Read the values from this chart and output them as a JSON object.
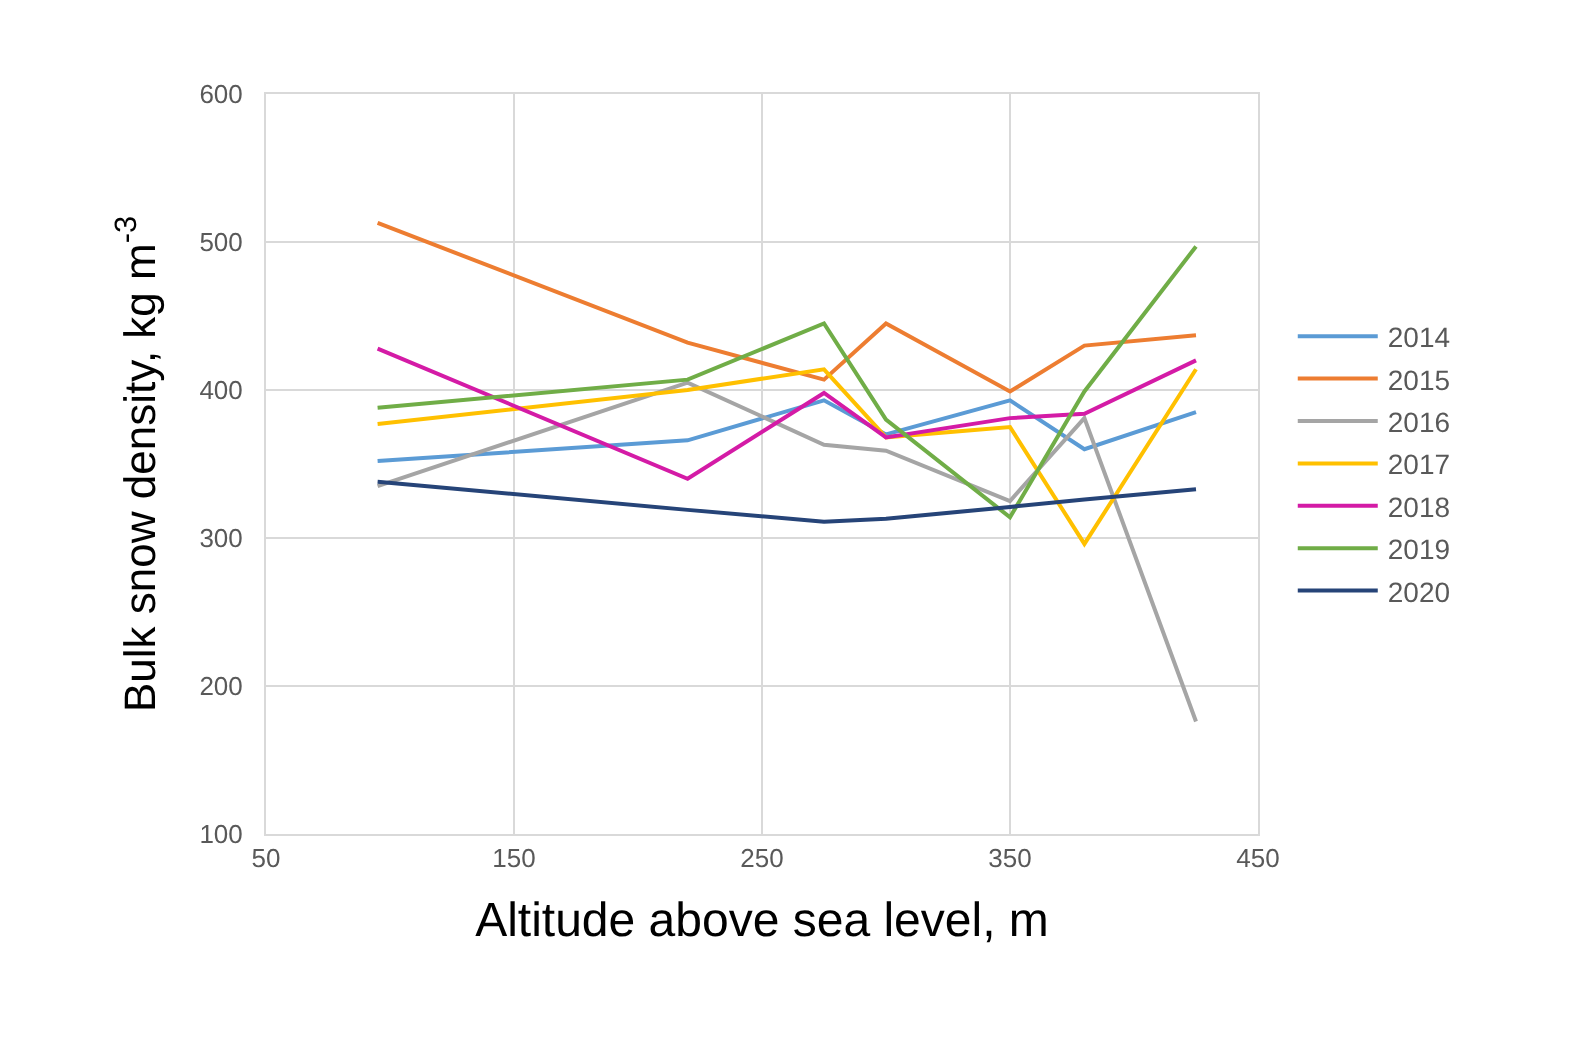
{
  "chart_data": {
    "type": "line",
    "xlabel": "Altitude above sea level, m",
    "ylabel": "Bulk snow density, kg m$^{-3}$",
    "x": [
      95,
      220,
      275,
      300,
      350,
      380,
      425
    ],
    "series": [
      {
        "name": "2014",
        "color": "#5b9bd5",
        "values": [
          352,
          366,
          393,
          370,
          393,
          360,
          385
        ]
      },
      {
        "name": "2015",
        "color": "#ed7d31",
        "values": [
          513,
          432,
          407,
          445,
          399,
          430,
          437
        ]
      },
      {
        "name": "2016",
        "color": "#a5a5a5",
        "values": [
          335,
          405,
          363,
          359,
          325,
          381,
          176
        ]
      },
      {
        "name": "2017",
        "color": "#ffc000",
        "values": [
          377,
          400,
          414,
          368,
          375,
          296,
          414
        ]
      },
      {
        "name": "2018",
        "color": "#d41ba6",
        "values": [
          428,
          340,
          398,
          368,
          381,
          384,
          420
        ]
      },
      {
        "name": "2019",
        "color": "#70ad47",
        "values": [
          388,
          407,
          445,
          380,
          314,
          399,
          497
        ]
      },
      {
        "name": "2020",
        "color": "#264478",
        "values": [
          338,
          319,
          311,
          313,
          321,
          326,
          333
        ]
      }
    ],
    "xlim": [
      50,
      450
    ],
    "xticks": [
      50,
      150,
      250,
      350,
      450
    ],
    "ylim": [
      100,
      600
    ],
    "yticks": [
      100,
      200,
      300,
      400,
      500,
      600
    ],
    "grid": true,
    "legend": "right",
    "marker": "none",
    "line_style": "solid"
  }
}
